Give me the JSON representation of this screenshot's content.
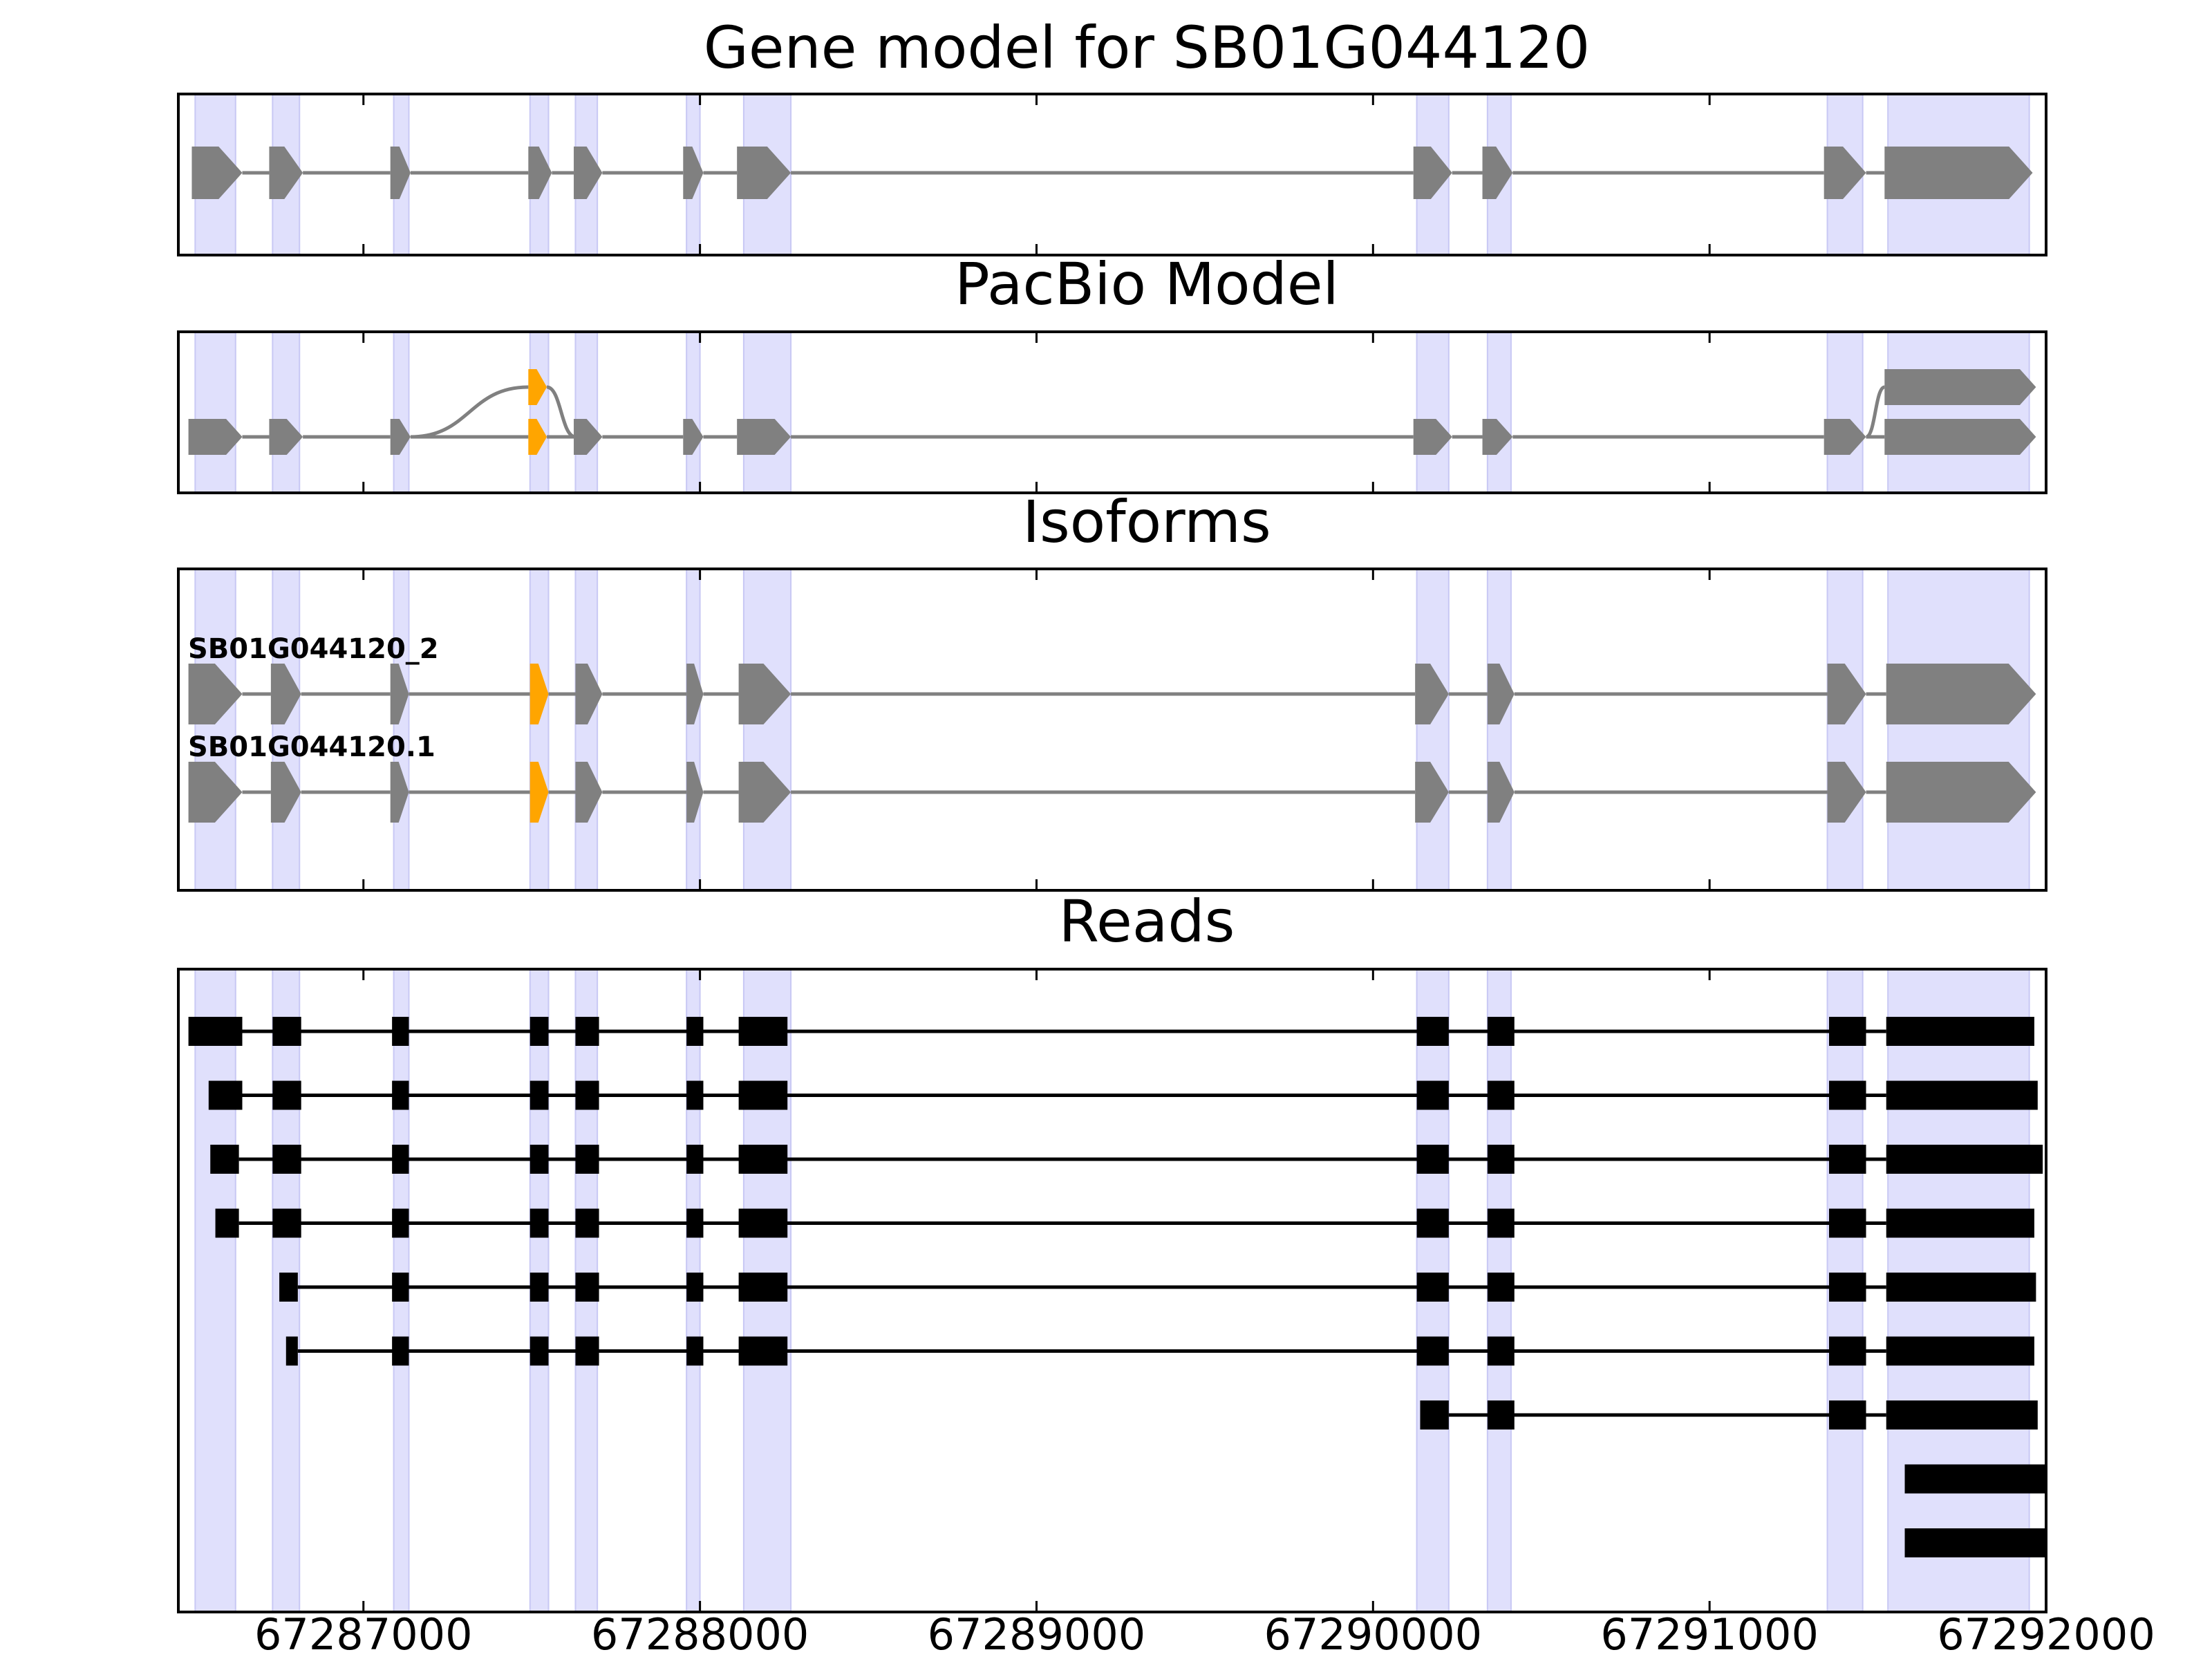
{
  "chart_data": {
    "type": "gene-structure",
    "xlim": [
      67286450,
      67292000
    ],
    "x_ticks": [
      67287000,
      67288000,
      67289000,
      67290000,
      67291000,
      67292000
    ],
    "x_tick_labels": [
      "67287000",
      "67288000",
      "67289000",
      "67290000",
      "67291000",
      "67292000"
    ],
    "colors": {
      "exon": "#808080",
      "intron": "#808080",
      "highlight_exon": "#ffa500",
      "exon_band": "#e0e0fc",
      "read": "#000000",
      "axes": "#000000"
    },
    "exon_bands": [
      [
        67286500,
        67286620
      ],
      [
        67286730,
        67286810
      ],
      [
        67287090,
        67287135
      ],
      [
        67287495,
        67287550
      ],
      [
        67287630,
        67287695
      ],
      [
        67287960,
        67288000
      ],
      [
        67288130,
        67288270
      ],
      [
        67290130,
        67290225
      ],
      [
        67290340,
        67290410
      ],
      [
        67291350,
        67291455
      ],
      [
        67291530,
        67291950
      ]
    ],
    "panels": [
      {
        "title": "Gene model for SB01G044120",
        "tracks": [
          {
            "name": "",
            "exons": [
              [
                67286490,
                67286640
              ],
              [
                67286720,
                67286820
              ],
              [
                67287080,
                67287140
              ],
              [
                67287490,
                67287560
              ],
              [
                67287625,
                67287710
              ],
              [
                67287950,
                67288010
              ],
              [
                67288110,
                67288270
              ],
              [
                67290120,
                67290235
              ],
              [
                67290325,
                67290415
              ],
              [
                67291340,
                67291465
              ],
              [
                67291520,
                67291960
              ]
            ],
            "highlight": []
          }
        ]
      },
      {
        "title": "PacBio Model",
        "tracks": [
          {
            "name": "",
            "exons": [
              [
                67287490,
                67287545
              ],
              [
                67291520,
                67291970
              ]
            ],
            "highlight": [
              0
            ],
            "links": [
              {
                "from_exon_end": 67287140,
                "to_track": 1,
                "to": 67287490
              },
              {
                "to_track": 1,
                "from": 67287545,
                "to": 67287630
              },
              {
                "to_track": 1,
                "from": 67291465,
                "to": 67291520
              }
            ]
          },
          {
            "name": "",
            "exons": [
              [
                67286480,
                67286640
              ],
              [
                67286720,
                67286820
              ],
              [
                67287080,
                67287140
              ],
              [
                67287490,
                67287545
              ],
              [
                67287625,
                67287710
              ],
              [
                67287950,
                67288010
              ],
              [
                67288110,
                67288270
              ],
              [
                67290120,
                67290235
              ],
              [
                67290325,
                67290415
              ],
              [
                67291340,
                67291465
              ],
              [
                67291520,
                67291970
              ]
            ],
            "highlight": [
              3
            ]
          }
        ]
      },
      {
        "title": "Isoforms",
        "tracks": [
          {
            "name": "SB01G044120_2",
            "exons": [
              [
                67286480,
                67286640
              ],
              [
                67286725,
                67286815
              ],
              [
                67287080,
                67287135
              ],
              [
                67287495,
                67287550
              ],
              [
                67287630,
                67287710
              ],
              [
                67287960,
                67288010
              ],
              [
                67288115,
                67288270
              ],
              [
                67290125,
                67290225
              ],
              [
                67290340,
                67290420
              ],
              [
                67291350,
                67291465
              ],
              [
                67291525,
                67291970
              ]
            ],
            "highlight": [
              3
            ]
          },
          {
            "name": "SB01G044120.1",
            "exons": [
              [
                67286480,
                67286640
              ],
              [
                67286725,
                67286815
              ],
              [
                67287080,
                67287135
              ],
              [
                67287495,
                67287550
              ],
              [
                67287630,
                67287710
              ],
              [
                67287960,
                67288010
              ],
              [
                67288115,
                67288270
              ],
              [
                67290125,
                67290225
              ],
              [
                67290340,
                67290420
              ],
              [
                67291350,
                67291465
              ],
              [
                67291525,
                67291970
              ]
            ],
            "highlight": [
              3
            ]
          }
        ]
      }
    ],
    "reads_panel": {
      "title": "Reads",
      "reads": [
        [
          [
            67286480,
            67286640
          ],
          [
            67286730,
            67286815
          ],
          [
            67287085,
            67287135
          ],
          [
            67287495,
            67287550
          ],
          [
            67287630,
            67287700
          ],
          [
            67287960,
            67288010
          ],
          [
            67288115,
            67288260
          ],
          [
            67290130,
            67290225
          ],
          [
            67290340,
            67290420
          ],
          [
            67291355,
            67291465
          ],
          [
            67291525,
            67291965
          ]
        ],
        [
          [
            67286540,
            67286640
          ],
          [
            67286730,
            67286815
          ],
          [
            67287085,
            67287135
          ],
          [
            67287495,
            67287550
          ],
          [
            67287630,
            67287700
          ],
          [
            67287960,
            67288010
          ],
          [
            67288115,
            67288260
          ],
          [
            67290130,
            67290225
          ],
          [
            67290340,
            67290420
          ],
          [
            67291355,
            67291465
          ],
          [
            67291525,
            67291975
          ]
        ],
        [
          [
            67286545,
            67286630
          ],
          [
            67286730,
            67286815
          ],
          [
            67287085,
            67287135
          ],
          [
            67287495,
            67287550
          ],
          [
            67287630,
            67287700
          ],
          [
            67287960,
            67288010
          ],
          [
            67288115,
            67288260
          ],
          [
            67290130,
            67290225
          ],
          [
            67290340,
            67290420
          ],
          [
            67291355,
            67291465
          ],
          [
            67291525,
            67291990
          ]
        ],
        [
          [
            67286560,
            67286630
          ],
          [
            67286730,
            67286815
          ],
          [
            67287085,
            67287135
          ],
          [
            67287495,
            67287550
          ],
          [
            67287630,
            67287700
          ],
          [
            67287960,
            67288010
          ],
          [
            67288115,
            67288260
          ],
          [
            67290130,
            67290225
          ],
          [
            67290340,
            67290420
          ],
          [
            67291355,
            67291465
          ],
          [
            67291525,
            67291965
          ]
        ],
        [
          [
            67286750,
            67286805
          ],
          [
            67287085,
            67287135
          ],
          [
            67287495,
            67287550
          ],
          [
            67287630,
            67287700
          ],
          [
            67287960,
            67288010
          ],
          [
            67288115,
            67288260
          ],
          [
            67290130,
            67290225
          ],
          [
            67290340,
            67290420
          ],
          [
            67291355,
            67291465
          ],
          [
            67291525,
            67291970
          ]
        ],
        [
          [
            67286770,
            67286805
          ],
          [
            67287085,
            67287135
          ],
          [
            67287495,
            67287550
          ],
          [
            67287630,
            67287700
          ],
          [
            67287960,
            67288010
          ],
          [
            67288115,
            67288260
          ],
          [
            67290130,
            67290225
          ],
          [
            67290340,
            67290420
          ],
          [
            67291355,
            67291465
          ],
          [
            67291525,
            67291965
          ]
        ],
        [
          [
            67290140,
            67290225
          ],
          [
            67290340,
            67290420
          ],
          [
            67291355,
            67291465
          ],
          [
            67291525,
            67291975
          ]
        ],
        [
          [
            67291580,
            67292000
          ]
        ],
        [
          [
            67291580,
            67292000
          ]
        ]
      ]
    }
  }
}
